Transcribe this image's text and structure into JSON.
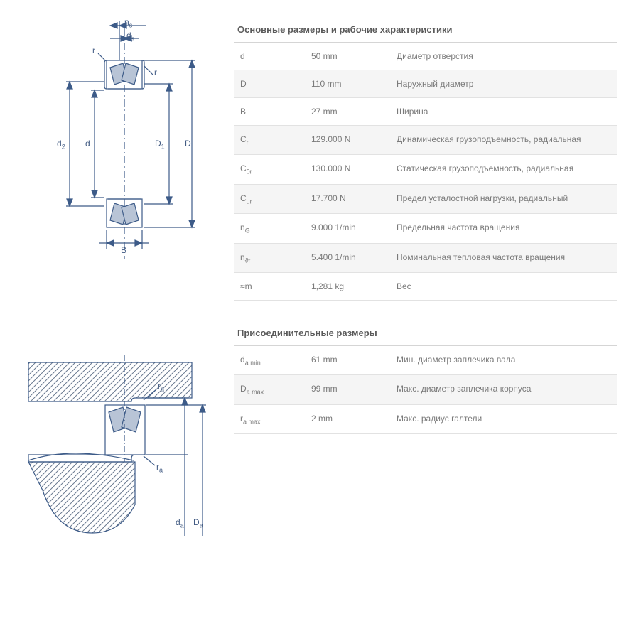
{
  "section1": {
    "title": "Основные размеры и рабочие характеристики"
  },
  "section2": {
    "title": "Присоединительные размеры"
  },
  "rows1": [
    {
      "sym": "d",
      "sub": "",
      "val": "50 mm",
      "desc": "Диаметр отверстия"
    },
    {
      "sym": "D",
      "sub": "",
      "val": "110 mm",
      "desc": "Наружный диаметр"
    },
    {
      "sym": "B",
      "sub": "",
      "val": "27 mm",
      "desc": "Ширина"
    },
    {
      "sym": "C",
      "sub": "r",
      "val": "129.000 N",
      "desc": "Динамическая грузоподъемность, радиальная"
    },
    {
      "sym": "C",
      "sub": "0r",
      "val": "130.000 N",
      "desc": "Статическая грузоподъемность, радиальная"
    },
    {
      "sym": "C",
      "sub": "ur",
      "val": "17.700 N",
      "desc": "Предел усталостной нагрузки, радиальный"
    },
    {
      "sym": "n",
      "sub": "G",
      "val": "9.000 1/min",
      "desc": "Предельная частота вращения"
    },
    {
      "sym": "n",
      "sub": "ϑr",
      "val": "5.400 1/min",
      "desc": "Номинальная тепловая частота вращения"
    },
    {
      "sym": "≈m",
      "sub": "",
      "val": "1,281 kg",
      "desc": "Вес"
    }
  ],
  "rows2": [
    {
      "sym": "d",
      "sub": "a min",
      "val": "61 mm",
      "desc": "Мин. диаметр заплечика вала"
    },
    {
      "sym": "D",
      "sub": "a max",
      "val": "99 mm",
      "desc": "Макс. диаметр заплечика корпуса"
    },
    {
      "sym": "r",
      "sub": "a max",
      "val": "2 mm",
      "desc": "Макс. радиус галтели"
    }
  ],
  "labels1": {
    "ns": "n",
    "nss": "s",
    "ds": "d",
    "dss": "s",
    "r1": "r",
    "r2": "r",
    "d2": "d",
    "d2s": "2",
    "d": "d",
    "D1": "D",
    "D1s": "1",
    "D": "D",
    "B": "B"
  },
  "labels2": {
    "ra1": "r",
    "ras1": "a",
    "ra2": "r",
    "ras2": "a",
    "da": "d",
    "das": "a",
    "Da": "D",
    "Das": "a"
  },
  "colors": {
    "stroke": "#3d5b88",
    "fill_dark": "#5a6f8f",
    "fill_light": "#b8c4d6",
    "hatch": "#6a7a90"
  }
}
